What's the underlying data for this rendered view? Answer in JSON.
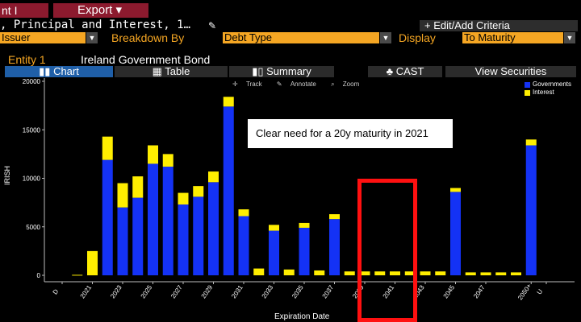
{
  "topbar": {
    "left_tab": "nt I",
    "export_label": "Export",
    "export_arrow": "▾"
  },
  "criteria": {
    "text": ", Principal and Interest, 1…",
    "edit_label": "+ Edit/Add Criteria"
  },
  "filters": {
    "group_value": "Issuer",
    "breakdown_label": "Breakdown By",
    "breakdown_value": "Debt Type",
    "display_label": "Display",
    "display_value": "To Maturity"
  },
  "entity": {
    "label": "Entity 1",
    "value": "Ireland Government Bond"
  },
  "view_tabs": {
    "chart": "Chart",
    "table": "Table",
    "summary": "Summary",
    "cast": "CAST",
    "view_securities": "View Securities"
  },
  "chart_toolbar": {
    "track": "Track",
    "annotate": "Annotate",
    "zoom": "Zoom"
  },
  "callout_text": "Clear need for a 20y maturity in 2021",
  "colors": {
    "governments": "#1432f5",
    "interest": "#ffee00",
    "accent_red": "#8c1a2e",
    "highlight_box": "#ff1010"
  },
  "chart_data": {
    "type": "bar",
    "stacked": true,
    "xlabel": "Expiration Date",
    "ylabel": "IRISH",
    "ylim": [
      0,
      20000
    ],
    "yticks": [
      0,
      5000,
      10000,
      15000,
      20000
    ],
    "x_tick_labels": [
      "D",
      "2021",
      "2023",
      "2025",
      "2027",
      "2029",
      "2031",
      "2033",
      "2035",
      "2037",
      "2039",
      "2041",
      "2043",
      "2045",
      "2047",
      "2050+",
      "U"
    ],
    "categories": [
      "D",
      "2020",
      "2021",
      "2022",
      "2023",
      "2024",
      "2025",
      "2026",
      "2027",
      "2028",
      "2029",
      "2030",
      "2031",
      "2032",
      "2033",
      "2034",
      "2035",
      "2036",
      "2037",
      "2038",
      "2039",
      "2040",
      "2041",
      "2042",
      "2043",
      "2044",
      "2045",
      "2046",
      "2047",
      "2048",
      "2049",
      "2050+",
      "U"
    ],
    "series": [
      {
        "name": "Governments",
        "values": [
          0,
          0,
          0,
          11900,
          7000,
          8000,
          11500,
          11200,
          7300,
          8100,
          9600,
          17400,
          6100,
          0,
          4600,
          0,
          4900,
          0,
          5800,
          0,
          0,
          0,
          0,
          0,
          0,
          0,
          8600,
          0,
          0,
          0,
          0,
          13400,
          0
        ]
      },
      {
        "name": "Interest",
        "values": [
          0,
          50,
          2500,
          2400,
          2500,
          2200,
          1900,
          1300,
          1200,
          1100,
          1100,
          1000,
          700,
          700,
          600,
          600,
          500,
          500,
          500,
          400,
          400,
          400,
          400,
          400,
          400,
          400,
          400,
          300,
          300,
          300,
          300,
          600,
          0
        ]
      }
    ],
    "legend_position": "top-right",
    "grid": false
  }
}
